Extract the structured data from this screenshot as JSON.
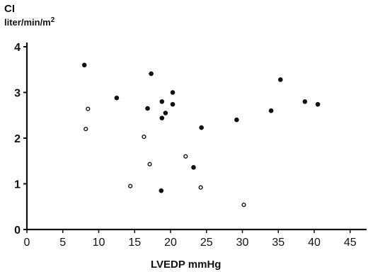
{
  "chart_data": {
    "type": "scatter",
    "title": "",
    "ylabel_top": "CI",
    "ylabel_unit": "liter/min/m",
    "ylabel_unit_sup": "2",
    "xlabel": "LVEDP mmHg",
    "xlim": [
      0,
      47
    ],
    "ylim": [
      0,
      4
    ],
    "x_ticks": [
      0,
      5,
      10,
      15,
      20,
      25,
      30,
      35,
      40,
      45
    ],
    "y_ticks": [
      0,
      1,
      2,
      3,
      4
    ],
    "grid": false,
    "series": [
      {
        "marker": "filled-circle",
        "points": [
          {
            "x": 8,
            "y": 3.6
          },
          {
            "x": 12.5,
            "y": 2.88
          },
          {
            "x": 17.3,
            "y": 3.41
          },
          {
            "x": 16.8,
            "y": 2.65
          },
          {
            "x": 18.8,
            "y": 2.8
          },
          {
            "x": 18.8,
            "y": 2.44
          },
          {
            "x": 19.3,
            "y": 2.55
          },
          {
            "x": 20.3,
            "y": 3.0
          },
          {
            "x": 20.3,
            "y": 2.74
          },
          {
            "x": 24.3,
            "y": 2.23
          },
          {
            "x": 23.2,
            "y": 1.36
          },
          {
            "x": 29.2,
            "y": 2.4
          },
          {
            "x": 34.0,
            "y": 2.6
          },
          {
            "x": 35.3,
            "y": 3.28
          },
          {
            "x": 38.7,
            "y": 2.8
          },
          {
            "x": 40.5,
            "y": 2.74
          },
          {
            "x": 18.7,
            "y": 0.85
          }
        ]
      },
      {
        "marker": "open-circle",
        "points": [
          {
            "x": 8.5,
            "y": 2.64
          },
          {
            "x": 8.2,
            "y": 2.2
          },
          {
            "x": 16.3,
            "y": 2.03
          },
          {
            "x": 17.1,
            "y": 1.43
          },
          {
            "x": 14.4,
            "y": 0.95
          },
          {
            "x": 22.1,
            "y": 1.6
          },
          {
            "x": 24.2,
            "y": 0.92
          },
          {
            "x": 30.2,
            "y": 0.54
          }
        ]
      }
    ],
    "colors": {
      "ink": "#111111",
      "background": "#ffffff"
    }
  }
}
